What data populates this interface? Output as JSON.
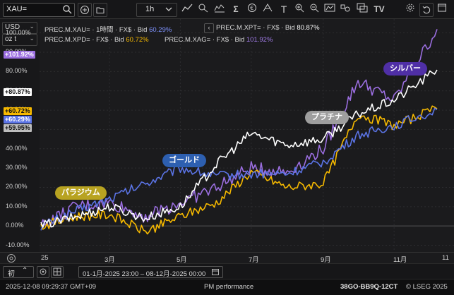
{
  "toolbar": {
    "search_value": "XAU=",
    "interval_label": "1h",
    "icons": [
      "search-icon",
      "add-icon",
      "folder-icon",
      "chevron-down-icon",
      "line-chart-icon",
      "hotspot-icon",
      "chart-style-icon",
      "sigma-icon",
      "currency-icon",
      "scale-icon",
      "text-icon",
      "zoom-in-icon",
      "zoom-out-icon",
      "indicator-icon",
      "shapes-icon",
      "overlay-icon",
      "logo-icon",
      "settings-icon",
      "undo-icon",
      "window-icon"
    ]
  },
  "left_panel": {
    "currency": "USD",
    "unit": "oz t",
    "y_ticks": [
      "100.00%",
      "90.00%",
      "80.00%",
      "70.00%",
      "60.00%",
      "50.00%",
      "40.00%",
      "30.00%",
      "20.00%",
      "10.00%",
      "0.00%",
      "-10.00%"
    ],
    "tags": [
      {
        "label": "+101.92%",
        "color": "#9b6ee0",
        "text": "#ffffff"
      },
      {
        "label": "+80.87%",
        "color": "#ffffff",
        "text": "#111111"
      },
      {
        "label": "+60.72%",
        "color": "#f6b900",
        "text": "#111111"
      },
      {
        "label": "+60.29%",
        "color": "#5b74e6",
        "text": "#ffffff"
      },
      {
        "label": "+59.95%",
        "color": "#bdbdbd",
        "text": "#111111"
      }
    ]
  },
  "legend": {
    "xau": {
      "ric": "PREC.M.XAU=",
      "meta": "· 1時間 · FX$ · Bid",
      "value": "60.29%",
      "color": "#7f93ff"
    },
    "xpt": {
      "ric": "PREC.M.XPT=",
      "meta": "· FX$ · Bid",
      "value": "80.87%",
      "color": "#ffffff"
    },
    "xpd": {
      "ric": "PREC.M.XPD=",
      "meta": "· FX$ · Bid",
      "value": "60.72%",
      "color": "#f6b900"
    },
    "xag": {
      "ric": "PREC.M.XAG=",
      "meta": "· FX$ · Bid",
      "value": "101.92%",
      "color": "#a07be6"
    },
    "collapse_glyph": "‹"
  },
  "bubbles": {
    "palladium": {
      "label": "パラジウム",
      "bg": "#b8a321",
      "fg": "#ffffff"
    },
    "gold": {
      "label": "ゴールド",
      "bg": "#2d5fb0",
      "fg": "#ffffff"
    },
    "platinum": {
      "label": "プラチナ",
      "bg": "#9e9e9e",
      "fg": "#ffffff"
    },
    "silver": {
      "label": "シルバー",
      "bg": "#4f2fa6",
      "fg": "#ffffff"
    }
  },
  "x_axis": {
    "labels": [
      "25",
      "3月",
      "5月",
      "7月",
      "9月",
      "11月",
      "11"
    ]
  },
  "bottom": {
    "timeframe": "初",
    "date_range": "01-1月-2025 23:00 – 08-12月-2025 00:00",
    "calendar_icon": "calendar-icon"
  },
  "status": {
    "timestamp": "2025-12-08 09:29:37 GMT+09",
    "title": "PM performance",
    "code": "38GO-BB9Q-12CT",
    "copyright": "© LSEG 2025"
  },
  "chart_data": {
    "type": "line",
    "x": [
      "2025-01-01",
      "2025-02-01",
      "2025-03-01",
      "2025-04-01",
      "2025-05-01",
      "2025-06-01",
      "2025-07-01",
      "2025-08-01",
      "2025-09-01",
      "2025-10-01",
      "2025-11-01",
      "2025-12-08"
    ],
    "ylim": [
      -12,
      105
    ],
    "series": [
      {
        "name": "PREC.M.XAU=",
        "color": "#5b74e6",
        "values": [
          0,
          8,
          14,
          22,
          30,
          26,
          27,
          27,
          33,
          47,
          52,
          60.29
        ]
      },
      {
        "name": "PREC.M.XPT=",
        "color": "#ffffff",
        "values": [
          0,
          5,
          10,
          4,
          10,
          32,
          48,
          42,
          45,
          58,
          65,
          80.87
        ]
      },
      {
        "name": "PREC.M.XPD=",
        "color": "#f6b900",
        "values": [
          0,
          5,
          6,
          -3,
          5,
          12,
          28,
          20,
          22,
          58,
          52,
          60.72
        ]
      },
      {
        "name": "PREC.M.XAG=",
        "color": "#9b6ee0",
        "values": [
          0,
          10,
          12,
          5,
          12,
          20,
          30,
          28,
          40,
          75,
          65,
          101.92
        ]
      }
    ]
  }
}
